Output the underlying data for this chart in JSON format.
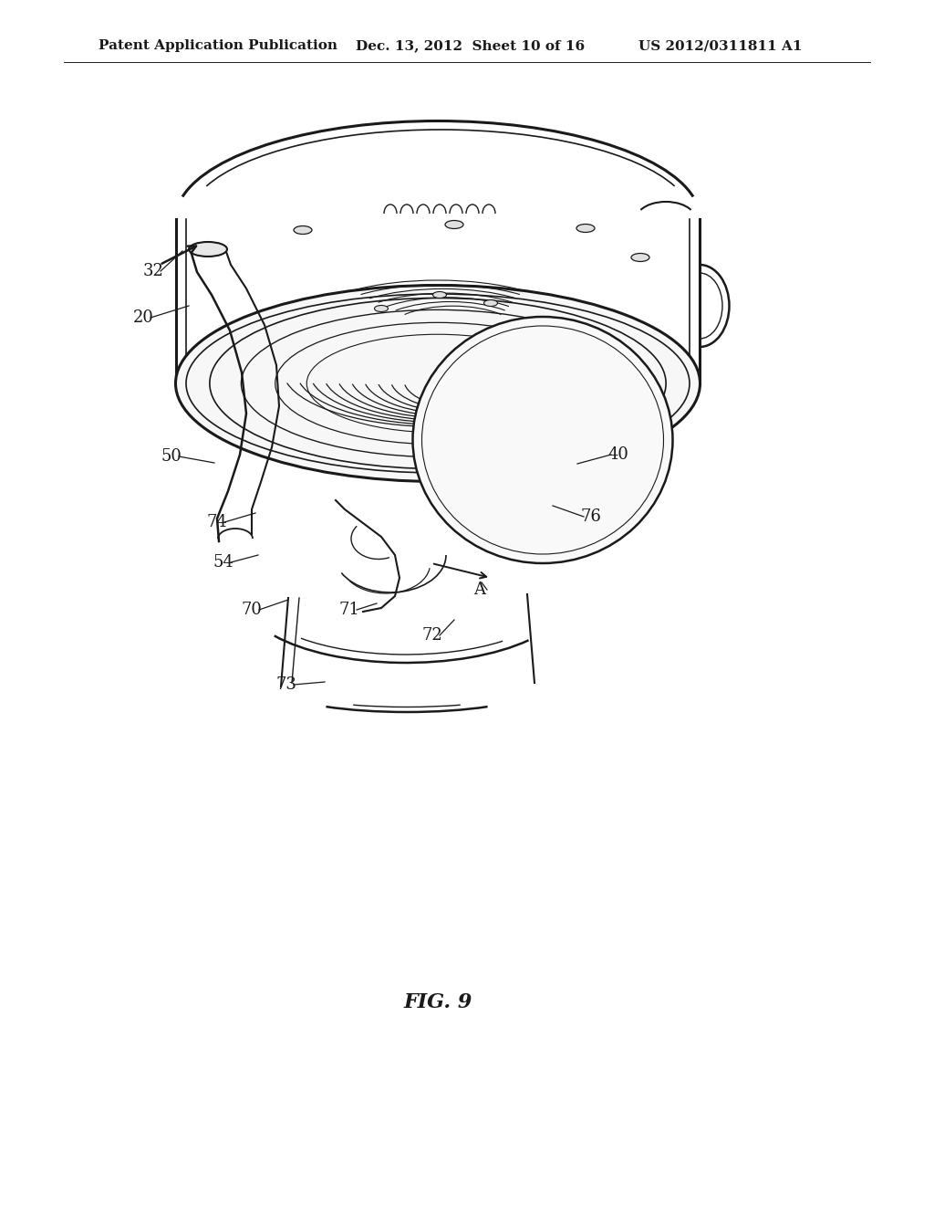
{
  "background_color": "#ffffff",
  "header_left": "Patent Application Publication",
  "header_center": "Dec. 13, 2012  Sheet 10 of 16",
  "header_right": "US 2012/0311811 A1",
  "figure_label": "FIG. 9",
  "line_color": "#1a1a1a",
  "label_color": "#1a1a1a",
  "fig_label_fontsize": 16,
  "header_fontsize": 11,
  "label_fontsize": 13
}
